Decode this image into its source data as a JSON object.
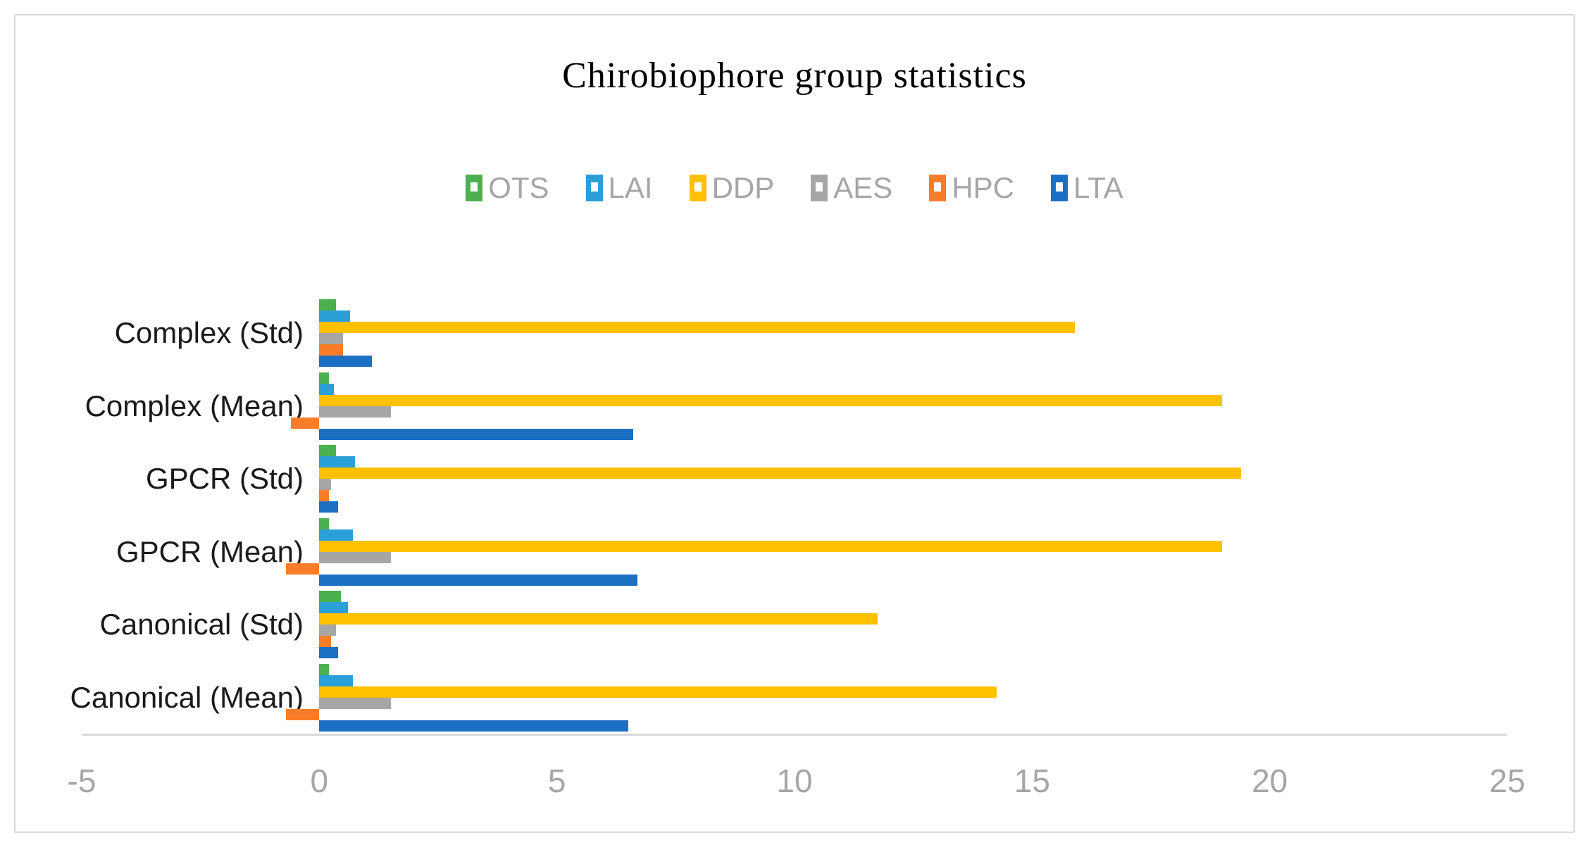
{
  "chart_data": {
    "type": "bar",
    "orientation": "horizontal",
    "title": "Chirobiophore group statistics",
    "categories_top_to_bottom": [
      "Complex (Std)",
      "Complex (Mean)",
      "GPCR (Std)",
      "GPCR (Mean)",
      "Canonical (Std)",
      "Canonical (Mean)"
    ],
    "series": [
      {
        "name": "OTS",
        "color": "#4CAF50",
        "values": [
          0.35,
          0.2,
          0.35,
          0.2,
          0.45,
          0.2
        ]
      },
      {
        "name": "LAI",
        "color": "#2B9FD7",
        "values": [
          0.65,
          0.3,
          0.75,
          0.7,
          0.6,
          0.7
        ]
      },
      {
        "name": "DDP",
        "color": "#FFC000",
        "values": [
          15.9,
          19.0,
          19.4,
          19.0,
          11.75,
          14.25
        ]
      },
      {
        "name": "AES",
        "color": "#A6A6A6",
        "values": [
          0.5,
          1.5,
          0.25,
          1.5,
          0.35,
          1.5
        ]
      },
      {
        "name": "HPC",
        "color": "#F97D28",
        "values": [
          0.5,
          -0.6,
          0.2,
          -0.7,
          0.25,
          -0.7
        ]
      },
      {
        "name": "LTA",
        "color": "#1C70C4",
        "values": [
          1.1,
          6.6,
          0.4,
          6.7,
          0.4,
          6.5
        ]
      }
    ],
    "x_ticks": [
      "-5",
      "0",
      "5",
      "10",
      "15",
      "20",
      "25"
    ],
    "x_tick_values": [
      -5,
      0,
      5,
      10,
      15,
      20,
      25
    ],
    "xlim": [
      -5,
      25
    ],
    "grid": false,
    "legend_position": "top",
    "colors": {
      "axis_line": "#d9d9d9",
      "tick_label": "#a6a6a6",
      "legend_label": "#a6a6a6",
      "category_label": "#1a1a1a",
      "title": "#000000",
      "frame_border": "#d9d9d9",
      "background": "#ffffff"
    }
  }
}
